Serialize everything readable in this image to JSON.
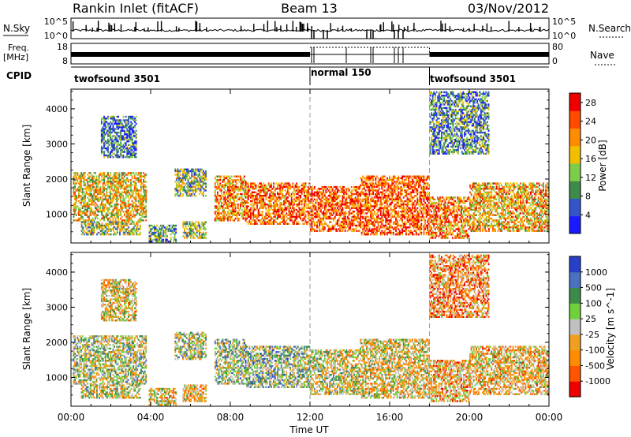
{
  "header": {
    "title": "Rankin Inlet (fitACF)",
    "beam": "Beam 13",
    "date": "03/Nov/2012"
  },
  "noise_panel": {
    "left_label": "N.Sky",
    "right_label": "N.Search",
    "right_ticks": [
      "10^5",
      "10^0"
    ],
    "left_ticks": [
      "10^5",
      "10^0"
    ]
  },
  "freq_panel": {
    "left_label_1": "Freq.",
    "left_label_2": "[MHz]",
    "left_ticks": [
      "18",
      "8"
    ],
    "right_label": "Nave",
    "right_ticks": [
      "80",
      "0"
    ]
  },
  "cpid_panel": {
    "label": "CPID",
    "segments": [
      {
        "name": "twofsound 3501",
        "start_hr": 0,
        "end_hr": 12
      },
      {
        "name": "normal 150",
        "start_hr": 12,
        "end_hr": 18
      },
      {
        "name": "twofsound 3501",
        "start_hr": 18,
        "end_hr": 24
      }
    ]
  },
  "chart_data": [
    {
      "type": "heatmap",
      "title": "",
      "xlabel": "Time UT",
      "ylabel": "Slant Range [km]",
      "xlim": [
        0,
        24
      ],
      "ylim": [
        180,
        4560
      ],
      "yticks": [
        1000,
        2000,
        3000,
        4000
      ],
      "colorbar": {
        "label": "Power [dB]",
        "ticks": [
          "4",
          "8",
          "12",
          "16",
          "20",
          "24",
          "28"
        ],
        "range": [
          0,
          30
        ],
        "colors": [
          "#1a1aff",
          "#3355c8",
          "#3d8a4a",
          "#7dcc4a",
          "#f0c000",
          "#ff8c00",
          "#ff4a00",
          "#ee0000"
        ]
      },
      "bands": [
        {
          "t0": 0.1,
          "t1": 3.8,
          "r0": 800,
          "r1": 2200,
          "level": 0.55
        },
        {
          "t0": 0.5,
          "t1": 3.5,
          "r0": 400,
          "r1": 800,
          "level": 0.45
        },
        {
          "t0": 3.9,
          "t1": 5.3,
          "r0": 200,
          "r1": 700,
          "level": 0.35
        },
        {
          "t0": 5.2,
          "t1": 6.8,
          "r0": 1500,
          "r1": 2300,
          "level": 0.4
        },
        {
          "t0": 5.6,
          "t1": 6.8,
          "r0": 300,
          "r1": 800,
          "level": 0.45
        },
        {
          "t0": 7.2,
          "t1": 8.8,
          "r0": 800,
          "r1": 2100,
          "level": 0.7
        },
        {
          "t0": 8.8,
          "t1": 12.0,
          "r0": 700,
          "r1": 1900,
          "level": 0.78
        },
        {
          "t0": 12.0,
          "t1": 14.5,
          "r0": 500,
          "r1": 1800,
          "level": 0.8
        },
        {
          "t0": 14.5,
          "t1": 18.0,
          "r0": 400,
          "r1": 2100,
          "level": 0.8
        },
        {
          "t0": 18.0,
          "t1": 20.0,
          "r0": 300,
          "r1": 1500,
          "level": 0.72
        },
        {
          "t0": 20.0,
          "t1": 24.0,
          "r0": 500,
          "r1": 1900,
          "level": 0.62
        },
        {
          "t0": 18.0,
          "t1": 21.0,
          "r0": 2700,
          "r1": 4500,
          "level": 0.3
        },
        {
          "t0": 1.5,
          "t1": 3.3,
          "r0": 2600,
          "r1": 3800,
          "level": 0.25
        }
      ]
    },
    {
      "type": "heatmap",
      "title": "",
      "xlabel": "Time UT",
      "ylabel": "Slant Range [km]",
      "xlim": [
        0,
        24
      ],
      "ylim": [
        180,
        4560
      ],
      "yticks": [
        1000,
        2000,
        3000,
        4000
      ],
      "xticks": [
        "00:00",
        "04:00",
        "08:00",
        "12:00",
        "16:00",
        "20:00",
        "00:00"
      ],
      "colorbar": {
        "label": "Velocity [m s^-1]",
        "ticks": [
          "1000",
          "500",
          "100",
          "25",
          "-25",
          "-100",
          "-500",
          "-1000"
        ],
        "range": [
          -1000,
          1000
        ],
        "colors": [
          "#ee0000",
          "#ff5500",
          "#ff8c00",
          "#f0a020",
          "#c0c0c0",
          "#6fd03c",
          "#3d8a4a",
          "#4a70c0",
          "#2840c8"
        ]
      },
      "bands": [
        {
          "t0": 0.1,
          "t1": 3.8,
          "r0": 800,
          "r1": 2200,
          "level": 0.55
        },
        {
          "t0": 0.5,
          "t1": 3.5,
          "r0": 400,
          "r1": 800,
          "level": 0.5
        },
        {
          "t0": 3.9,
          "t1": 5.3,
          "r0": 200,
          "r1": 700,
          "level": 0.45
        },
        {
          "t0": 5.2,
          "t1": 6.8,
          "r0": 1500,
          "r1": 2300,
          "level": 0.55
        },
        {
          "t0": 5.6,
          "t1": 6.8,
          "r0": 300,
          "r1": 800,
          "level": 0.4
        },
        {
          "t0": 7.2,
          "t1": 8.8,
          "r0": 800,
          "r1": 2100,
          "level": 0.6
        },
        {
          "t0": 8.8,
          "t1": 12.0,
          "r0": 700,
          "r1": 1900,
          "level": 0.62
        },
        {
          "t0": 12.0,
          "t1": 14.5,
          "r0": 500,
          "r1": 1800,
          "level": 0.5
        },
        {
          "t0": 14.5,
          "t1": 18.0,
          "r0": 400,
          "r1": 2100,
          "level": 0.45
        },
        {
          "t0": 18.0,
          "t1": 20.0,
          "r0": 300,
          "r1": 1500,
          "level": 0.35
        },
        {
          "t0": 20.0,
          "t1": 24.0,
          "r0": 500,
          "r1": 1900,
          "level": 0.4
        },
        {
          "t0": 18.0,
          "t1": 21.0,
          "r0": 2700,
          "r1": 4500,
          "level": 0.3
        },
        {
          "t0": 1.5,
          "t1": 3.3,
          "r0": 2600,
          "r1": 3800,
          "level": 0.45
        }
      ]
    }
  ]
}
